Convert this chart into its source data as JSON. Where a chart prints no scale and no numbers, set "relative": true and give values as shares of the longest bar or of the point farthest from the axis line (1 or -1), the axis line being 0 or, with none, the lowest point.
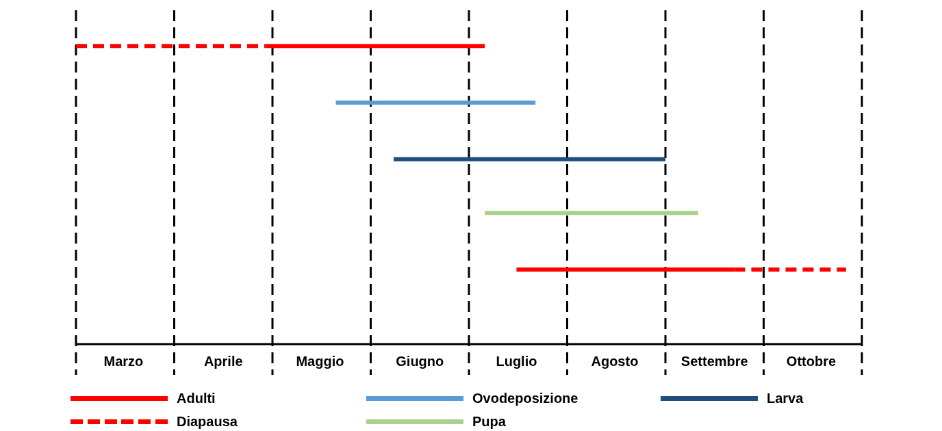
{
  "chart_data": {
    "type": "line",
    "relative": true,
    "xlim": [
      "--03-01",
      "--11-01"
    ],
    "xticks": [
      {
        "value": "--03-16",
        "label": "Marzo"
      },
      {
        "value": "--04-16",
        "label": "Aprile"
      },
      {
        "value": "--05-16",
        "label": "Maggio"
      },
      {
        "value": "--06-16",
        "label": "Giugno"
      },
      {
        "value": "--07-16",
        "label": "Luglio"
      },
      {
        "value": "--08-16",
        "label": "Agosto"
      },
      {
        "value": "--09-16",
        "label": "Settembre"
      },
      {
        "value": "--10-16",
        "label": "Ottobre"
      }
    ],
    "ref_lines": [
      {
        "axis": "x",
        "value": "--03-01",
        "color": "#000000",
        "line_style": "dashed"
      },
      {
        "axis": "x",
        "value": "--04-01",
        "color": "#000000",
        "line_style": "dashed"
      },
      {
        "axis": "x",
        "value": "--05-01",
        "color": "#000000",
        "line_style": "dashed"
      },
      {
        "axis": "x",
        "value": "--06-01",
        "color": "#000000",
        "line_style": "dashed"
      },
      {
        "axis": "x",
        "value": "--07-01",
        "color": "#000000",
        "line_style": "dashed"
      },
      {
        "axis": "x",
        "value": "--08-01",
        "color": "#000000",
        "line_style": "dashed"
      },
      {
        "axis": "x",
        "value": "--09-01",
        "color": "#000000",
        "line_style": "dashed"
      },
      {
        "axis": "x",
        "value": "--10-01",
        "color": "#000000",
        "line_style": "dashed"
      },
      {
        "axis": "x",
        "value": "--11-01",
        "color": "#000000",
        "line_style": "dashed"
      }
    ],
    "series": [
      {
        "name": "Adulti",
        "color": "#ff0000",
        "line_style": "solid",
        "x": [
          "--04-29",
          "--07-06",
          null,
          "--07-16",
          "--09-22"
        ],
        "values": [
          1,
          1,
          null,
          0.25,
          0.25
        ]
      },
      {
        "name": "Ovodeposizione",
        "color": "#5b9bd5",
        "line_style": "solid",
        "x": [
          "--05-21",
          "--07-22"
        ],
        "values": [
          0.81,
          0.81
        ]
      },
      {
        "name": "Larva",
        "color": "#1f4e79",
        "line_style": "solid",
        "x": [
          "--06-08",
          "--09-01"
        ],
        "values": [
          0.62,
          0.62
        ]
      },
      {
        "name": "Diapausa",
        "color": "#ff0000",
        "line_style": "dashed",
        "x": [
          "--03-01",
          "--04-29",
          null,
          "--09-22",
          "--10-27"
        ],
        "values": [
          1,
          1,
          null,
          0.25,
          0.25
        ]
      },
      {
        "name": "Pupa",
        "color": "#a9d18e",
        "line_style": "solid",
        "x": [
          "--07-06",
          "--09-11"
        ],
        "values": [
          0.44,
          0.44
        ]
      }
    ],
    "grid": false,
    "marker": "none",
    "legend": "bottom"
  }
}
